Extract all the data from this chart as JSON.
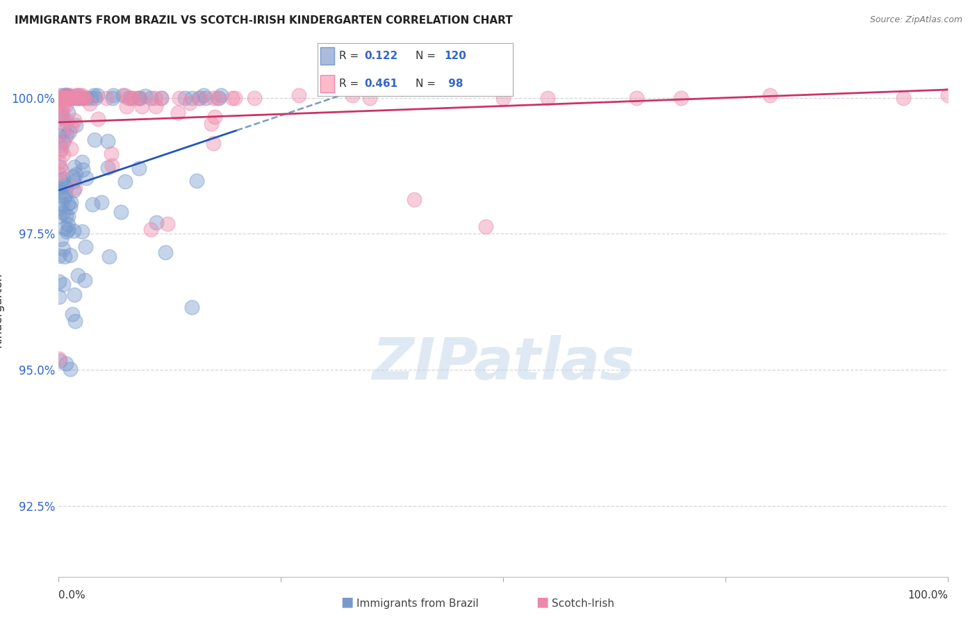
{
  "title": "IMMIGRANTS FROM BRAZIL VS SCOTCH-IRISH KINDERGARTEN CORRELATION CHART",
  "source": "Source: ZipAtlas.com",
  "ylabel": "Kindergarten",
  "y_ticks": [
    92.5,
    95.0,
    97.5,
    100.0
  ],
  "y_tick_labels": [
    "92.5%",
    "95.0%",
    "97.5%",
    "100.0%"
  ],
  "xlim": [
    0,
    100
  ],
  "ylim": [
    91.2,
    101.0
  ],
  "brazil_color": "#7799cc",
  "scotch_color": "#ee88aa",
  "brazil_R": 0.122,
  "brazil_N": 120,
  "scotch_R": 0.461,
  "scotch_N": 98,
  "background_color": "#ffffff",
  "grid_color": "#cccccc",
  "watermark_color": "#c5d8ea",
  "watermark_alpha": 0.55,
  "brazil_line_color": "#2255bb",
  "scotch_line_color": "#cc3366",
  "brazil_dash_color": "#7799cc",
  "title_fontsize": 11,
  "legend_R1": "0.122",
  "legend_N1": "120",
  "legend_R2": "0.461",
  "legend_N2": "98"
}
